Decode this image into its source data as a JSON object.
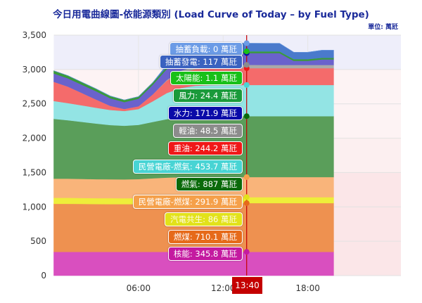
{
  "chart_data": {
    "type": "area",
    "stacked": true,
    "title": "今日用電曲線圖-依能源類別 (Load Curve of Today – by Fuel Type)",
    "unit_label": "單位: 萬瓩",
    "ylim": [
      0,
      3500
    ],
    "yticks": [
      "0",
      "500",
      "1,000",
      "1,500",
      "2,000",
      "2,500",
      "3,000",
      "3,500"
    ],
    "xlim_hours": [
      0,
      24
    ],
    "xticks": [
      {
        "h": 6,
        "label": "06:00"
      },
      {
        "h": 12,
        "label": "12:00"
      },
      {
        "h": 18,
        "label": "18:00"
      }
    ],
    "grid": true,
    "x_hours": [
      0,
      1,
      2,
      3,
      4,
      5,
      6,
      7,
      8,
      9,
      10,
      11,
      12,
      13,
      14,
      15,
      16,
      17,
      18,
      19,
      19.83
    ],
    "series": [
      {
        "name": "核能",
        "area_color": "#d94fbf",
        "label_color": "#c41aa0",
        "values": [
          346,
          346,
          346,
          346,
          346,
          346,
          346,
          346,
          346,
          346,
          346,
          346,
          346,
          346,
          346,
          346,
          346,
          346,
          346,
          346,
          346
        ]
      },
      {
        "name": "燃煤",
        "area_color": "#ee9150",
        "label_color": "#e66a1a",
        "values": [
          700,
          700,
          698,
          696,
          695,
          694,
          695,
          700,
          705,
          708,
          710,
          710,
          710,
          710,
          710,
          710,
          710,
          710,
          710,
          710,
          710
        ]
      },
      {
        "name": "汽電共生",
        "area_color": "#eeee3a",
        "label_color": "#e2e21a",
        "values": [
          86,
          86,
          86,
          86,
          86,
          86,
          86,
          86,
          86,
          86,
          86,
          86,
          86,
          86,
          86,
          86,
          86,
          86,
          86,
          86,
          86
        ]
      },
      {
        "name": "民營電廠-燃煤",
        "area_color": "#f9b47a",
        "label_color": "#f5a04a",
        "values": [
          280,
          280,
          278,
          276,
          275,
          275,
          278,
          285,
          290,
          292,
          292,
          292,
          292,
          292,
          292,
          292,
          292,
          292,
          292,
          292,
          292
        ]
      },
      {
        "name": "燃氣",
        "area_color": "#5a9e5a",
        "label_color": "#0a6a0a",
        "values": [
          870,
          850,
          830,
          810,
          790,
          780,
          790,
          820,
          850,
          870,
          880,
          885,
          887,
          887,
          887,
          887,
          887,
          887,
          887,
          887,
          887
        ]
      },
      {
        "name": "民營電廠-燃氣",
        "area_color": "#93e4e4",
        "label_color": "#48d4d4",
        "values": [
          260,
          250,
          240,
          230,
          220,
          215,
          230,
          300,
          380,
          430,
          450,
          453,
          454,
          454,
          454,
          454,
          454,
          454,
          454,
          454,
          454
        ]
      },
      {
        "name": "重油",
        "area_color": "#f46b6b",
        "label_color": "#f01818",
        "values": [
          280,
          240,
          180,
          120,
          60,
          30,
          40,
          100,
          180,
          220,
          240,
          244,
          244,
          244,
          244,
          244,
          244,
          244,
          244,
          244,
          244
        ]
      },
      {
        "name": "輕油",
        "area_color": "#a9a9a9",
        "label_color": "#8c8c8c",
        "values": [
          0,
          0,
          0,
          0,
          0,
          0,
          0,
          0,
          10,
          30,
          45,
          48,
          48,
          48.5,
          48.5,
          48,
          48,
          48,
          48,
          48,
          48
        ]
      },
      {
        "name": "水力",
        "area_color": "#6a62cc",
        "label_color": "#0a0aa8",
        "values": [
          120,
          120,
          120,
          120,
          110,
          100,
          110,
          140,
          160,
          170,
          172,
          172,
          172,
          171.9,
          172,
          172,
          172,
          60,
          60,
          80,
          80
        ]
      },
      {
        "name": "風力",
        "area_color": "#3a9a3a",
        "label_color": "#1a9a3a",
        "values": [
          40,
          38,
          36,
          34,
          32,
          30,
          30,
          30,
          28,
          26,
          25,
          25,
          24,
          24.4,
          24,
          24,
          24,
          24,
          24,
          24,
          24
        ]
      },
      {
        "name": "太陽能",
        "area_color": "#44cc44",
        "label_color": "#18c018",
        "values": [
          0,
          0,
          0,
          0,
          0,
          0,
          0,
          0.5,
          1,
          1,
          1,
          1,
          1,
          1.1,
          1.1,
          1,
          1,
          0.8,
          0.3,
          0,
          0
        ]
      },
      {
        "name": "抽蓄發電",
        "area_color": "#4a7acc",
        "label_color": "#3a62c0",
        "values": [
          0,
          0,
          0,
          0,
          0,
          0,
          0,
          0,
          30,
          80,
          110,
          117,
          117,
          117,
          117,
          117,
          117,
          100,
          100,
          110,
          110
        ]
      },
      {
        "name": "抽蓄負載",
        "area_color": "#6a9ae0",
        "label_color": "#6b9be6",
        "values": [
          0,
          0,
          0,
          0,
          0,
          0,
          0,
          0,
          0,
          0,
          0,
          0,
          0,
          0,
          0,
          0,
          0,
          0,
          0,
          0,
          0
        ]
      }
    ],
    "crosshair": {
      "time": "13:40",
      "hour": 13.667,
      "color": "#c40000"
    },
    "tooltip": [
      {
        "name": "抽蓄負載",
        "text": "抽蓄負載: 0 萬瓩"
      },
      {
        "name": "抽蓄發電",
        "text": "抽蓄發電: 117 萬瓩"
      },
      {
        "name": "太陽能",
        "text": "太陽能: 1.1 萬瓩"
      },
      {
        "name": "風力",
        "text": "風力: 24.4 萬瓩"
      },
      {
        "name": "水力",
        "text": "水力: 171.9 萬瓩"
      },
      {
        "name": "輕油",
        "text": "輕油: 48.5 萬瓩"
      },
      {
        "name": "重油",
        "text": "重油: 244.2 萬瓩"
      },
      {
        "name": "民營電廠-燃氣",
        "text": "民營電廠-燃氣: 453.7 萬瓩"
      },
      {
        "name": "燃氣",
        "text": "燃氣: 887 萬瓩"
      },
      {
        "name": "民營電廠-燃煤",
        "text": "民營電廠-燃煤: 291.9 萬瓩"
      },
      {
        "name": "汽電共生",
        "text": "汽電共生: 86 萬瓩"
      },
      {
        "name": "燃煤",
        "text": "燃煤: 710.1 萬瓩"
      },
      {
        "name": "核能",
        "text": "核能: 345.8 萬瓩"
      }
    ]
  }
}
